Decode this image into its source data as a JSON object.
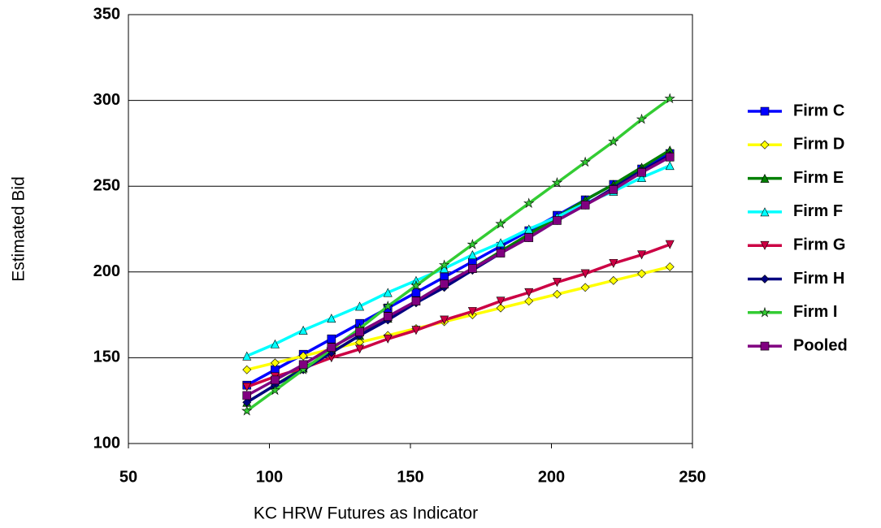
{
  "chart_data": {
    "type": "line",
    "x_label": "KC HRW Futures as Indicator",
    "y_label": "Estimated Bid",
    "x": [
      92,
      102,
      112,
      122,
      132,
      142,
      152,
      162,
      172,
      182,
      192,
      202,
      212,
      222,
      232,
      242
    ],
    "series": [
      {
        "name": "Firm C",
        "color": "#0000ff",
        "marker": "square",
        "values": [
          134,
          143,
          152,
          161,
          170,
          179,
          188,
          197,
          206,
          215,
          224,
          233,
          242,
          251,
          260,
          269
        ]
      },
      {
        "name": "Firm D",
        "color": "#ffff00",
        "marker": "diamond",
        "values": [
          143,
          147,
          151,
          155,
          159,
          163,
          167,
          171,
          175,
          179,
          183,
          187,
          191,
          195,
          199,
          203
        ]
      },
      {
        "name": "Firm E",
        "color": "#008000",
        "marker": "triangle",
        "values": [
          124,
          134,
          144,
          153,
          163,
          173,
          183,
          193,
          202,
          212,
          222,
          232,
          242,
          251,
          261,
          271
        ]
      },
      {
        "name": "Firm F",
        "color": "#00ffff",
        "marker": "triangle",
        "values": [
          151,
          158,
          166,
          173,
          180,
          188,
          195,
          202,
          210,
          217,
          225,
          232,
          240,
          247,
          255,
          262
        ]
      },
      {
        "name": "Firm G",
        "color": "#cc0044",
        "marker": "triangle-down",
        "values": [
          133,
          139,
          144,
          150,
          155,
          161,
          166,
          172,
          177,
          183,
          188,
          194,
          199,
          205,
          210,
          216
        ]
      },
      {
        "name": "Firm H",
        "color": "#000080",
        "marker": "diamond",
        "values": [
          124,
          134,
          143,
          153,
          163,
          172,
          182,
          191,
          201,
          211,
          220,
          230,
          239,
          249,
          259,
          268
        ]
      },
      {
        "name": "Firm I",
        "color": "#33cc33",
        "marker": "star",
        "values": [
          119,
          131,
          143,
          155,
          167,
          180,
          192,
          204,
          216,
          228,
          240,
          252,
          264,
          276,
          289,
          301
        ]
      },
      {
        "name": "Pooled",
        "color": "#800080",
        "marker": "square",
        "values": [
          128,
          137,
          146,
          156,
          165,
          174,
          183,
          193,
          202,
          211,
          220,
          230,
          239,
          248,
          258,
          267
        ]
      }
    ],
    "xlim": [
      50,
      250
    ],
    "xticks": [
      50,
      100,
      150,
      200,
      250
    ],
    "ylim": [
      100,
      350
    ],
    "yticks": [
      100,
      150,
      200,
      250,
      300,
      350
    ],
    "grid": true,
    "legend": "right"
  }
}
